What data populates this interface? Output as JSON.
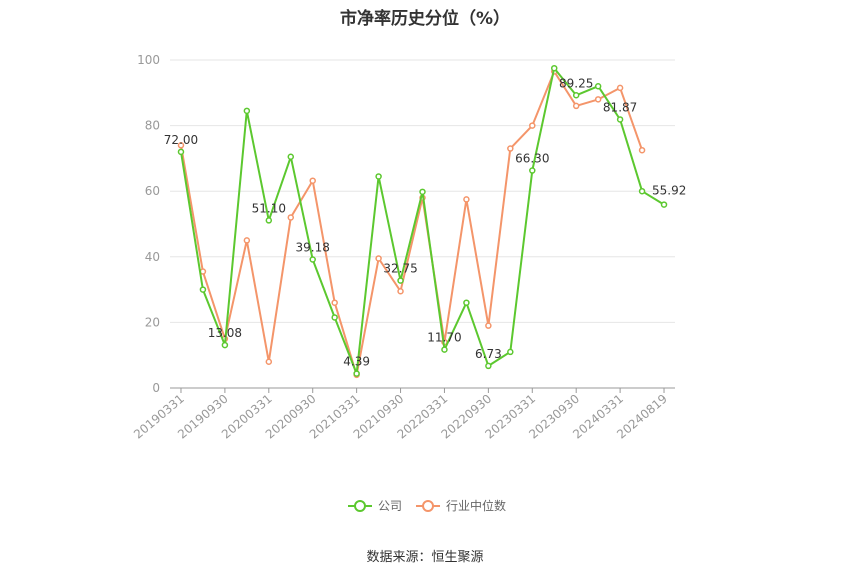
{
  "chart_data": {
    "type": "line",
    "title": "市净率历史分位（%）",
    "ylim": [
      0,
      100
    ],
    "yticks": [
      0,
      20,
      40,
      60,
      80,
      100
    ],
    "x": [
      "20190331",
      "20190630",
      "20190930",
      "20191231",
      "20200331",
      "20200630",
      "20200930",
      "20201231",
      "20210331",
      "20210630",
      "20210930",
      "20211231",
      "20220331",
      "20220630",
      "20220930",
      "20221231",
      "20230331",
      "20230630",
      "20230930",
      "20231231",
      "20240331",
      "20240630",
      "20240819"
    ],
    "x_tick_labels": [
      "20190331",
      "20190930",
      "20200331",
      "20200930",
      "20210331",
      "20210930",
      "20220331",
      "20220930",
      "20230331",
      "20230930",
      "20240331",
      "20240819"
    ],
    "series": [
      {
        "name": "公司",
        "color": "#5cc82f",
        "values": [
          72.0,
          30,
          13.08,
          84.5,
          51.1,
          70.5,
          39.18,
          21.5,
          4.39,
          64.5,
          32.75,
          59.8,
          11.7,
          26,
          6.73,
          11,
          66.3,
          97.5,
          89.25,
          92,
          81.87,
          60,
          55.92
        ],
        "labels": {
          "0": "72.00",
          "2": "13.08",
          "4": "51.10",
          "6": "39.18",
          "8": "4.39",
          "10": "32.75",
          "12": "11.70",
          "14": "6.73",
          "16": "66.30",
          "18": "89.25",
          "20": "81.87",
          "22": "55.92"
        }
      },
      {
        "name": "行业中位数",
        "color": "#f4956a",
        "values": [
          74,
          35.5,
          15,
          45,
          8,
          52,
          63.2,
          26,
          4,
          39.5,
          29.5,
          58,
          14,
          57.5,
          19,
          73,
          80,
          96.5,
          86,
          88,
          91.5,
          72.5,
          null
        ]
      }
    ],
    "legend_position": "bottom",
    "grid": true
  },
  "source": "数据来源：恒生聚源"
}
